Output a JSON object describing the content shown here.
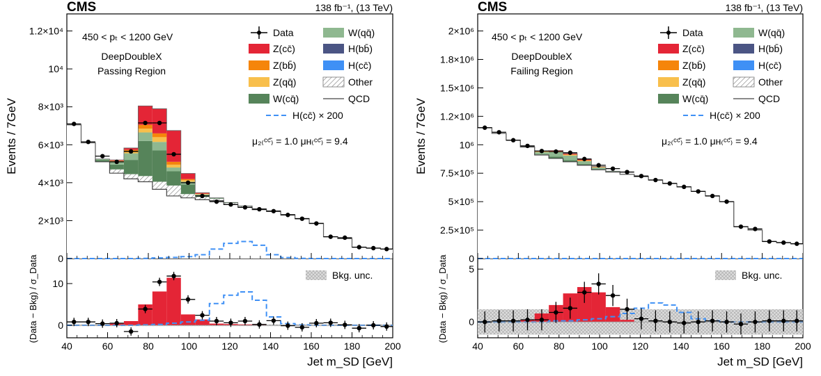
{
  "colors": {
    "zcc": "#e42536",
    "zbb": "#f5850b",
    "zqq": "#f8bf4c",
    "wcq": "#56845a",
    "wqq": "#8fb890",
    "hbb": "#4b5584",
    "hcc": "#3f90f5",
    "other_hatch": "#888888",
    "qcd": "#444444",
    "signal": "#3f90f5",
    "unc": "#cccccc"
  },
  "panels": [
    {
      "experiment": "CMS",
      "lumi_label": "138 fb⁻¹,  (13 TeV)",
      "pt_label": "450 < pₜ < 1200 GeV",
      "tagger_label": "DeepDoubleX",
      "region_label": "Passing Region",
      "mu_label": "μ₂₍ᶜᶜ̄₎ = 1.0   μʜ₍ᶜᶜ̄₎ = 9.4",
      "ylabel": "Events / 7GeV",
      "ratio_ylabel": "(Data − Bkg) / σ_Data",
      "xlabel": "Jet m_SD [GeV]",
      "unc_label": "Bkg. unc."
    },
    {
      "experiment": "CMS",
      "lumi_label": "138 fb⁻¹,  (13 TeV)",
      "pt_label": "450 < pₜ < 1200 GeV",
      "tagger_label": "DeepDoubleX",
      "region_label": "Failing Region",
      "mu_label": "μ₂₍ᶜᶜ̄₎ = 1.0   μʜ₍ᶜᶜ̄₎ = 9.4",
      "ylabel": "Events / 7GeV",
      "ratio_ylabel": "(Data − Bkg) / σ_Data",
      "xlabel": "Jet m_SD [GeV]",
      "unc_label": "Bkg. unc."
    }
  ],
  "legend": {
    "data": "Data",
    "zcc": "Z(cc̄)",
    "zbb": "Z(bb̄)",
    "zqq": "Z(qq̄)",
    "wcq": "W(cq̄)",
    "wqq": "W(qq̄)",
    "hbb": "H(bb̄)",
    "hcc": "H(cc̄)",
    "other": "Other",
    "qcd": "QCD",
    "signal": "H(cc̄) × 200"
  },
  "chart_data": [
    {
      "type": "bar",
      "title": "Passing Region",
      "xlabel": "Jet m_SD [GeV]",
      "ylabel": "Events / 7GeV",
      "xlim": [
        40,
        200
      ],
      "ylim": [
        0,
        12900
      ],
      "yticks": [
        0,
        2000,
        4000,
        6000,
        8000,
        10000,
        12000
      ],
      "ytick_labels": [
        "0",
        "2×10³",
        "4×10³",
        "6×10³",
        "8×10³",
        "10⁴",
        "1.2×10⁴"
      ],
      "xticks": [
        40,
        60,
        80,
        100,
        120,
        140,
        160,
        180,
        200
      ],
      "bin_edges": [
        40,
        47,
        54,
        61,
        68,
        75,
        82,
        89,
        96,
        103,
        110,
        117,
        124,
        131,
        138,
        145,
        152,
        159,
        166,
        173,
        180,
        187,
        194,
        201
      ],
      "qcd": [
        7050,
        6100,
        5100,
        4500,
        4200,
        4050,
        3650,
        3300,
        3200,
        3100,
        3050,
        2850,
        2700,
        2580,
        2480,
        2300,
        2100,
        1850,
        1150,
        1050,
        600,
        550,
        500
      ],
      "other": [
        0,
        0,
        0,
        200,
        250,
        300,
        400,
        550,
        200,
        150,
        100,
        80,
        60,
        50,
        40,
        30,
        20,
        20,
        10,
        10,
        0,
        0,
        0
      ],
      "wcq": [
        0,
        0,
        100,
        250,
        750,
        1850,
        1650,
        750,
        500,
        80,
        30,
        20,
        10,
        0,
        0,
        0,
        0,
        0,
        0,
        0,
        0,
        0,
        0
      ],
      "wqq": [
        0,
        0,
        50,
        150,
        350,
        450,
        450,
        200,
        150,
        50,
        20,
        10,
        10,
        0,
        0,
        0,
        0,
        0,
        0,
        0,
        0,
        0,
        0
      ],
      "zqq": [
        0,
        0,
        0,
        40,
        100,
        200,
        250,
        150,
        80,
        20,
        0,
        0,
        0,
        0,
        0,
        0,
        0,
        0,
        0,
        0,
        0,
        0,
        0
      ],
      "zbb": [
        0,
        0,
        0,
        20,
        80,
        200,
        200,
        150,
        60,
        20,
        0,
        0,
        0,
        0,
        0,
        0,
        0,
        0,
        0,
        0,
        0,
        0,
        0
      ],
      "zcc": [
        0,
        0,
        0,
        40,
        100,
        1000,
        1300,
        1650,
        300,
        50,
        0,
        0,
        0,
        0,
        0,
        0,
        0,
        0,
        0,
        0,
        0,
        0,
        0
      ],
      "data": [
        7100,
        6150,
        5400,
        5100,
        5650,
        7150,
        7150,
        5500,
        4000,
        3300,
        3000,
        2850,
        2700,
        2600,
        2500,
        2300,
        2100,
        1850,
        1150,
        1100,
        600,
        550,
        500
      ],
      "signal_x200": [
        0,
        0,
        0,
        0,
        0,
        10,
        30,
        60,
        100,
        200,
        500,
        800,
        900,
        700,
        200,
        50,
        10,
        0,
        0,
        0,
        0,
        0,
        0
      ],
      "mu_zcc": 1.0,
      "mu_hcc": 9.4,
      "ratio": {
        "ylim": [
          -3,
          16
        ],
        "yticks": [
          0,
          10
        ],
        "data_pull": [
          0.8,
          0.8,
          0.4,
          0.5,
          -1.5,
          3.9,
          10.4,
          11.8,
          6.2,
          2.4,
          1.0,
          0.6,
          1.0,
          0.2,
          1.1,
          -0.1,
          -0.5,
          0.5,
          0.6,
          0.1,
          -0.7,
          0.0,
          -0.3
        ],
        "stack_pull": [
          0,
          0,
          0,
          0.4,
          1.0,
          5.0,
          8.1,
          11.4,
          2.6,
          1.4,
          0.4,
          0.3,
          0.2,
          0.1,
          0,
          0,
          0,
          0,
          0,
          0,
          0,
          0,
          0
        ],
        "signal_pull": [
          0,
          0,
          0,
          0,
          0,
          0.1,
          0.2,
          0.5,
          0.8,
          1.2,
          5.2,
          7.2,
          8.0,
          6.0,
          2.0,
          0.4,
          0.1,
          0,
          0,
          0,
          0,
          0,
          0
        ],
        "unc_band": [
          0.2,
          0.2,
          0.2,
          0.2,
          0.2,
          0.2,
          0.2,
          0.2,
          0.2,
          0.2,
          0.2,
          0.2,
          0.2,
          0.2,
          0.2,
          0.2,
          0.2,
          0.2,
          0.2,
          0.2,
          0.2,
          0.2,
          0.2
        ]
      }
    },
    {
      "type": "bar",
      "title": "Failing Region",
      "xlabel": "Jet m_SD [GeV]",
      "ylabel": "Events / 7GeV",
      "xlim": [
        40,
        200
      ],
      "ylim": [
        0,
        2150000
      ],
      "yticks": [
        0,
        250000,
        500000,
        750000,
        1000000,
        1250000,
        1500000,
        1750000,
        2000000
      ],
      "ytick_labels": [
        "0",
        "2.5×10⁵",
        "5×10⁵",
        "7.5×10⁵",
        "10⁶",
        "1.2×10⁶",
        "1.5×10⁶",
        "1.8×10⁶",
        "2×10⁶"
      ],
      "xticks": [
        40,
        60,
        80,
        100,
        120,
        140,
        160,
        180,
        200
      ],
      "bin_edges": [
        40,
        47,
        54,
        61,
        68,
        75,
        82,
        89,
        96,
        103,
        110,
        117,
        124,
        131,
        138,
        145,
        152,
        159,
        166,
        173,
        180,
        187,
        194,
        201
      ],
      "qcd": [
        1150000,
        1100000,
        1040000,
        980000,
        910000,
        880000,
        850000,
        820000,
        780000,
        760000,
        740000,
        720000,
        690000,
        660000,
        630000,
        590000,
        550000,
        500000,
        280000,
        250000,
        150000,
        140000,
        130000
      ],
      "other": [
        0,
        0,
        0,
        0,
        0,
        0,
        0,
        0,
        0,
        0,
        0,
        0,
        0,
        0,
        0,
        0,
        0,
        0,
        0,
        0,
        0,
        0,
        0
      ],
      "wcq": [
        0,
        0,
        0,
        0,
        5000,
        15000,
        15000,
        10000,
        5000,
        2000,
        0,
        0,
        0,
        0,
        0,
        0,
        0,
        0,
        0,
        0,
        0,
        0,
        0
      ],
      "wqq": [
        0,
        0,
        0,
        5000,
        20000,
        40000,
        40000,
        25000,
        15000,
        5000,
        0,
        0,
        0,
        0,
        0,
        0,
        0,
        0,
        0,
        0,
        0,
        0,
        0
      ],
      "zqq": [
        0,
        0,
        0,
        0,
        3000,
        6000,
        6000,
        5000,
        3000,
        0,
        0,
        0,
        0,
        0,
        0,
        0,
        0,
        0,
        0,
        0,
        0,
        0,
        0
      ],
      "zbb": [
        0,
        0,
        0,
        0,
        2000,
        4000,
        4000,
        4000,
        2000,
        0,
        0,
        0,
        0,
        0,
        0,
        0,
        0,
        0,
        0,
        0,
        0,
        0,
        0
      ],
      "zcc": [
        0,
        0,
        0,
        0,
        2000,
        5000,
        8000,
        8000,
        4000,
        1000,
        0,
        0,
        0,
        0,
        0,
        0,
        0,
        0,
        0,
        0,
        0,
        0,
        0
      ],
      "data": [
        1150000,
        1110000,
        1040000,
        990000,
        945000,
        940000,
        930000,
        875000,
        820000,
        790000,
        760000,
        725000,
        690000,
        660000,
        630000,
        590000,
        550000,
        500000,
        280000,
        260000,
        150000,
        140000,
        130000
      ],
      "signal_x200": [
        0,
        0,
        0,
        0,
        0,
        0,
        0,
        0,
        0,
        0,
        0,
        0,
        0,
        0,
        0,
        0,
        0,
        0,
        0,
        0,
        0,
        0,
        0
      ],
      "mu_zcc": 1.0,
      "mu_hcc": 9.4,
      "ratio": {
        "ylim": [
          -1.5,
          6
        ],
        "yticks": [
          0,
          5
        ],
        "data_pull": [
          0.0,
          0.1,
          0.1,
          0.2,
          0.2,
          0.9,
          1.3,
          2.8,
          3.6,
          2.5,
          1.2,
          0.3,
          0.1,
          0.0,
          -0.1,
          0.0,
          0.1,
          0.0,
          -0.2,
          0.0,
          0.1,
          0.1,
          0.1
        ],
        "stack_pull": [
          0,
          0,
          0,
          0.2,
          0.8,
          1.6,
          2.7,
          3.3,
          2.8,
          1.4,
          0.2,
          0,
          0,
          0,
          0,
          0,
          0,
          0,
          0,
          0,
          0,
          0,
          0
        ],
        "signal_pull": [
          0,
          0,
          0,
          0,
          0,
          0.1,
          0.1,
          0.2,
          0.3,
          0.5,
          0.8,
          1.3,
          1.8,
          1.6,
          0.9,
          0.3,
          0.1,
          0,
          0,
          0,
          0,
          0,
          0
        ],
        "unc_band": [
          1.2,
          1.2,
          1.2,
          1.2,
          1.2,
          1.2,
          1.2,
          1.2,
          1.2,
          1.2,
          1.2,
          1.2,
          1.2,
          1.2,
          1.2,
          1.2,
          1.2,
          1.2,
          1.2,
          1.2,
          1.2,
          1.2,
          1.2
        ]
      }
    }
  ]
}
